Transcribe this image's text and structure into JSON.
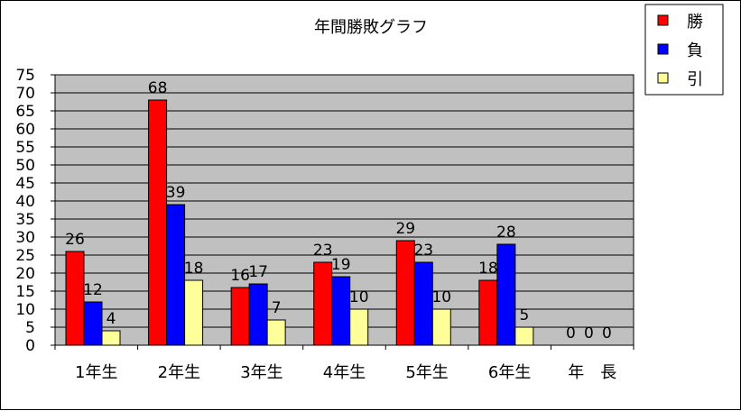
{
  "chart_data": {
    "type": "bar",
    "title": "年間勝敗グラフ",
    "categories": [
      "1年生",
      "2年生",
      "3年生",
      "4年生",
      "5年生",
      "6年生",
      "年　長"
    ],
    "series": [
      {
        "name": "勝",
        "color": "#ff0000",
        "values": [
          26,
          68,
          16,
          23,
          29,
          18,
          0
        ]
      },
      {
        "name": "負",
        "color": "#0000ff",
        "values": [
          12,
          39,
          17,
          19,
          23,
          28,
          0
        ]
      },
      {
        "name": "引",
        "color": "#ffff99",
        "values": [
          4,
          18,
          7,
          10,
          10,
          5,
          0
        ]
      }
    ],
    "ylim": [
      0,
      75
    ],
    "ytick_step": 5,
    "plot_background": "#c0c0c0",
    "grid": true,
    "legend_position": "top-right"
  }
}
